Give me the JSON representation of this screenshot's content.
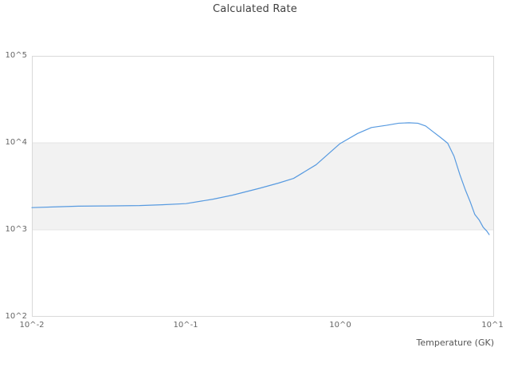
{
  "chart_data": {
    "type": "line",
    "title": "Calculated Rate",
    "xlabel": "Temperature (GK)",
    "ylabel": "",
    "x_scale": "log",
    "y_scale": "log",
    "xlim": [
      0.01,
      10
    ],
    "ylim": [
      100,
      100000
    ],
    "x_ticks": [
      0.01,
      0.1,
      1,
      10
    ],
    "y_ticks": [
      100,
      1000,
      10000,
      100000
    ],
    "x_tick_labels": [
      "10^-2",
      "10^-1",
      "10^0",
      "10^1"
    ],
    "y_tick_labels": [
      "10^2",
      "10^3",
      "10^4",
      "10^5"
    ],
    "grid": false,
    "legend": "none",
    "band": {
      "y0": 1000,
      "y1": 10000,
      "fill": "#f2f2f2",
      "edge": "#e4e4e4"
    },
    "line_color": "#579ae0",
    "border_color": "#d9d9d9",
    "series": [
      {
        "name": "Calculated Rate",
        "x": [
          0.01,
          0.015,
          0.02,
          0.03,
          0.05,
          0.07,
          0.1,
          0.15,
          0.2,
          0.3,
          0.4,
          0.5,
          0.7,
          1.0,
          1.3,
          1.6,
          2.0,
          2.4,
          2.8,
          3.2,
          3.6,
          4.0,
          4.5,
          5.0,
          5.5,
          6.0,
          6.5,
          7.0,
          7.5,
          8.0,
          8.5,
          9.0,
          9.3
        ],
        "y": [
          1800,
          1840,
          1870,
          1880,
          1900,
          1940,
          2000,
          2250,
          2500,
          3000,
          3450,
          3900,
          5600,
          9800,
          12800,
          15000,
          15900,
          16800,
          17000,
          16800,
          15600,
          13500,
          11500,
          9900,
          7000,
          4300,
          2900,
          2100,
          1500,
          1300,
          1070,
          960,
          880
        ]
      }
    ]
  }
}
